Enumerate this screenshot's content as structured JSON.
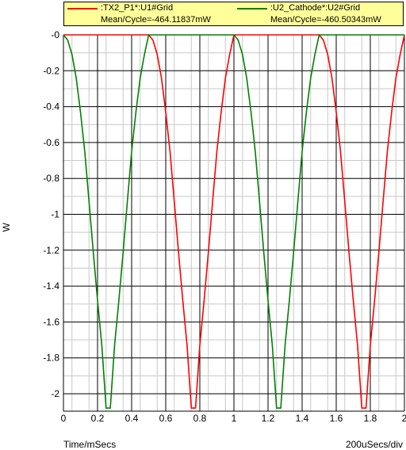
{
  "chart_data": {
    "type": "line",
    "ylabel": "W",
    "xlim": [
      0,
      2
    ],
    "ylim": [
      -2.1,
      0
    ],
    "x_ticks": [
      "0",
      "0.2",
      "0.4",
      "0.6",
      "0.8",
      "1",
      "1.2",
      "1.4",
      "1.6",
      "1.8",
      "2"
    ],
    "y_ticks": [
      "-0",
      "-0.2",
      "-0.4",
      "-0.6",
      "-0.8",
      "-1",
      "-1.2",
      "-1.4",
      "-1.6",
      "-1.8",
      "-2"
    ],
    "grid": true,
    "legend_position": "top",
    "series": [
      {
        "name": ":TX2_P1*:U1#Grid",
        "mean": "Mean/Cycle=-464.11837mW",
        "color": "#ff0000",
        "x": [
          0,
          0.5,
          0.525,
          0.55,
          0.575,
          0.6,
          0.625,
          0.65,
          0.675,
          0.7,
          0.725,
          0.75,
          0.775,
          0.8,
          0.825,
          0.85,
          0.875,
          0.9,
          0.925,
          0.95,
          0.975,
          1.0,
          1.5,
          1.525,
          1.55,
          1.575,
          1.6,
          1.625,
          1.65,
          1.675,
          1.7,
          1.725,
          1.75,
          1.775,
          1.8,
          1.825,
          1.85,
          1.875,
          1.9,
          1.925,
          1.95,
          1.975,
          2.0
        ],
        "values": [
          0,
          0,
          -0.03,
          -0.11,
          -0.24,
          -0.43,
          -0.65,
          -0.93,
          -1.21,
          -1.48,
          -1.73,
          -2.08,
          -2.08,
          -1.73,
          -1.48,
          -1.21,
          -0.93,
          -0.65,
          -0.43,
          -0.24,
          -0.11,
          0,
          0,
          -0.03,
          -0.11,
          -0.24,
          -0.43,
          -0.65,
          -0.93,
          -1.21,
          -1.48,
          -1.73,
          -2.08,
          -2.08,
          -1.73,
          -1.48,
          -1.21,
          -0.93,
          -0.65,
          -0.43,
          -0.24,
          -0.11,
          0
        ]
      },
      {
        "name": ":U2_Cathode*:U2#Grid",
        "mean": "Mean/Cycle=-460.50343mW",
        "color": "#008000",
        "x": [
          0,
          0.025,
          0.05,
          0.075,
          0.1,
          0.125,
          0.15,
          0.175,
          0.2,
          0.225,
          0.25,
          0.275,
          0.3,
          0.325,
          0.35,
          0.375,
          0.4,
          0.425,
          0.45,
          0.475,
          0.5,
          1.0,
          1.025,
          1.05,
          1.075,
          1.1,
          1.125,
          1.15,
          1.175,
          1.2,
          1.225,
          1.25,
          1.275,
          1.3,
          1.325,
          1.35,
          1.375,
          1.4,
          1.425,
          1.45,
          1.475,
          1.5,
          2.0
        ],
        "values": [
          0,
          -0.03,
          -0.11,
          -0.24,
          -0.43,
          -0.65,
          -0.93,
          -1.21,
          -1.48,
          -1.73,
          -2.08,
          -2.08,
          -1.73,
          -1.48,
          -1.21,
          -0.93,
          -0.65,
          -0.43,
          -0.24,
          -0.11,
          0,
          0,
          -0.03,
          -0.11,
          -0.24,
          -0.43,
          -0.65,
          -0.93,
          -1.21,
          -1.48,
          -1.73,
          -2.08,
          -2.08,
          -1.73,
          -1.48,
          -1.21,
          -0.93,
          -0.65,
          -0.43,
          -0.24,
          -0.11,
          0,
          0
        ]
      }
    ]
  },
  "footer": {
    "x_axis_label": "Time/mSecs",
    "x_scale": "200uSecs/div"
  }
}
